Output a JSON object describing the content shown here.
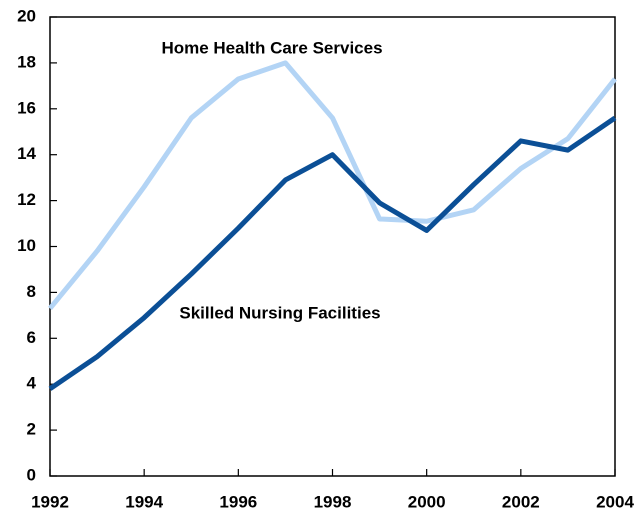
{
  "chart_data": {
    "type": "line",
    "x": [
      1992,
      1993,
      1994,
      1995,
      1996,
      1997,
      1998,
      1999,
      2000,
      2001,
      2002,
      2003,
      2004
    ],
    "series": [
      {
        "name": "Home Health Care Services",
        "color": "#b3d4f5",
        "values": [
          7.3,
          9.8,
          12.6,
          15.6,
          17.3,
          18.0,
          15.6,
          11.2,
          11.1,
          11.6,
          13.4,
          14.7,
          17.3
        ]
      },
      {
        "name": "Skilled Nursing Facilities",
        "color": "#0b4f96",
        "values": [
          3.8,
          5.2,
          6.9,
          8.8,
          10.8,
          12.9,
          14.0,
          11.9,
          10.7,
          12.7,
          14.6,
          14.2,
          15.6
        ]
      }
    ],
    "xlim": [
      1992,
      2004
    ],
    "xticks": [
      1992,
      1994,
      1996,
      1998,
      2000,
      2002,
      2004
    ],
    "ylim": [
      0,
      20
    ],
    "yticks": [
      0,
      2,
      4,
      6,
      8,
      10,
      12,
      14,
      16,
      18,
      20
    ],
    "grid": false
  }
}
